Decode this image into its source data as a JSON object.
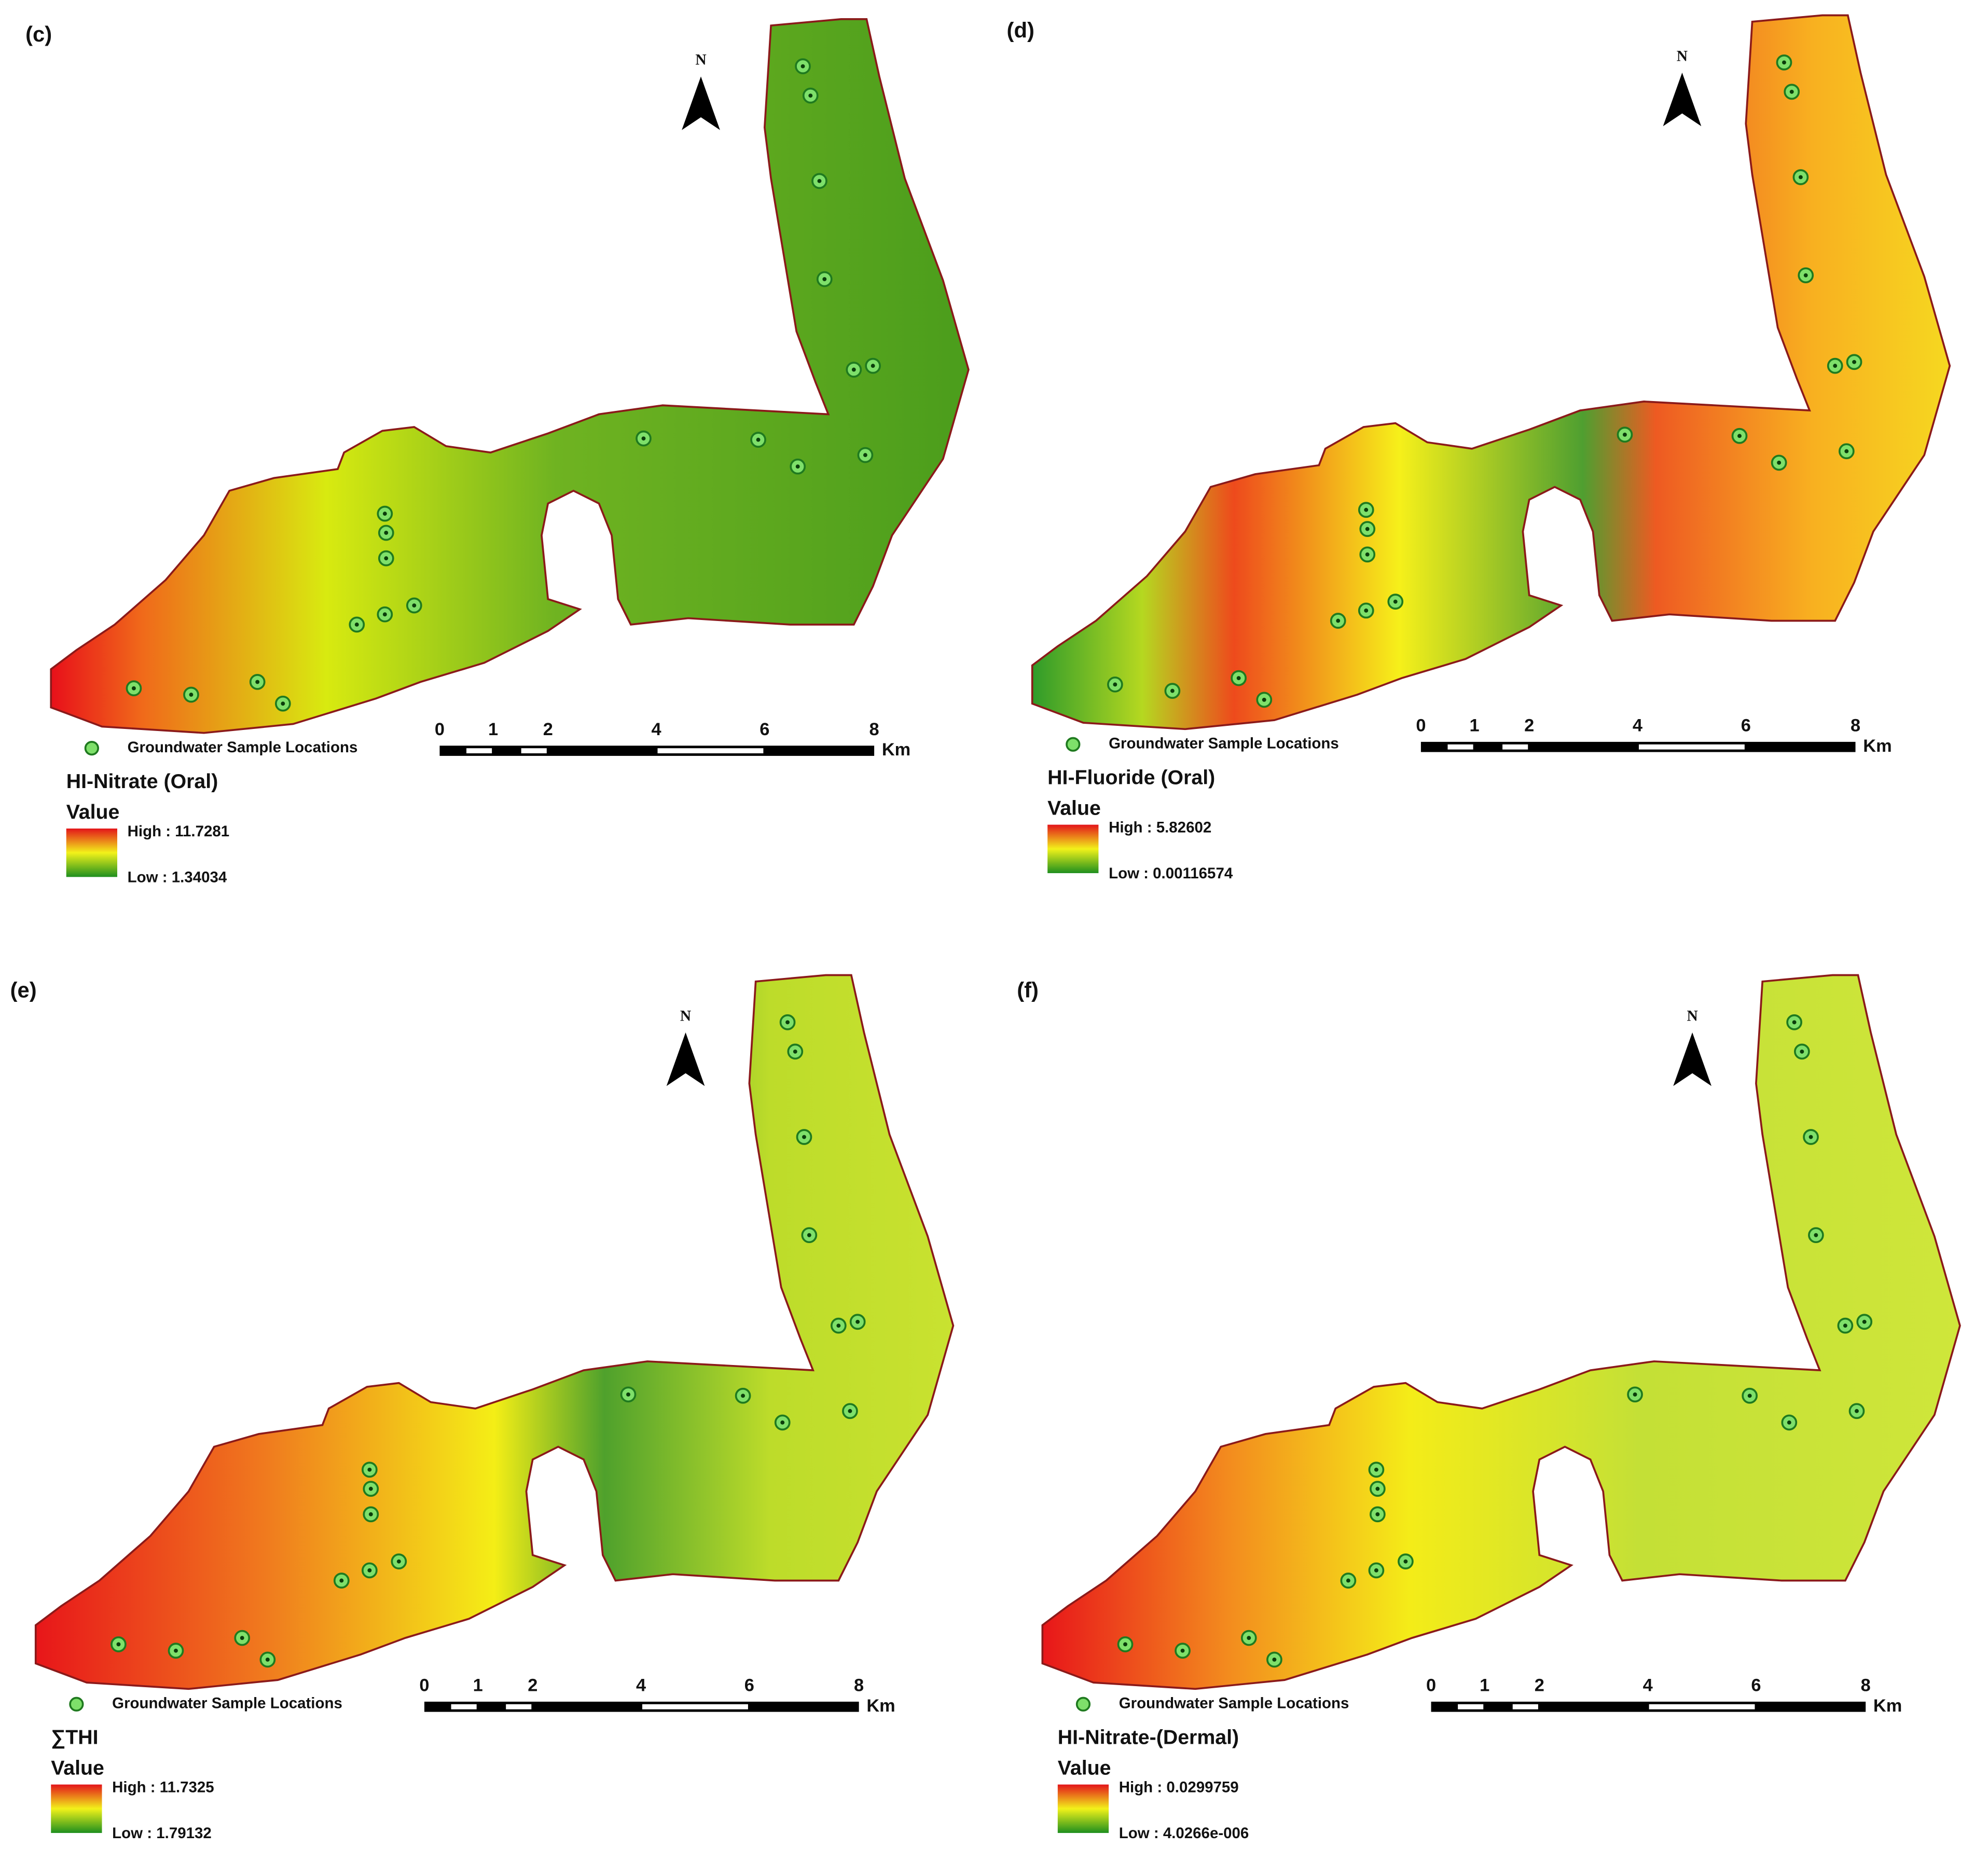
{
  "panels": [
    {
      "label": "(c)",
      "title": "HI-Nitrate (Oral)",
      "value_heading": "Value",
      "high": "High : 11.7281",
      "low": "Low : 1.34034",
      "legend_sample": "Groundwater Sample Locations",
      "scale_labels": [
        "0",
        "1",
        "2",
        "4",
        "6",
        "8"
      ],
      "scale_unit": "Km",
      "north": "N"
    },
    {
      "label": "(d)",
      "title": "HI-Fluoride (Oral)",
      "value_heading": "Value",
      "high": "High : 5.82602",
      "low": "Low : 0.00116574",
      "legend_sample": "Groundwater Sample Locations",
      "scale_labels": [
        "0",
        "1",
        "2",
        "4",
        "6",
        "8"
      ],
      "scale_unit": "Km",
      "north": "N"
    },
    {
      "label": "(e)",
      "title": "∑THI",
      "value_heading": "Value",
      "high": "High : 11.7325",
      "low": "Low : 1.79132",
      "legend_sample": "Groundwater Sample Locations",
      "scale_labels": [
        "0",
        "1",
        "2",
        "4",
        "6",
        "8"
      ],
      "scale_unit": "Km",
      "north": "N"
    },
    {
      "label": "(f)",
      "title": "HI-Nitrate-(Dermal)",
      "value_heading": "Value",
      "high": "High : 0.0299759",
      "low": "Low : 4.0266e-006",
      "legend_sample": "Groundwater Sample Locations",
      "scale_labels": [
        "0",
        "1",
        "2",
        "4",
        "6",
        "8"
      ],
      "scale_unit": "Km",
      "north": "N"
    }
  ]
}
